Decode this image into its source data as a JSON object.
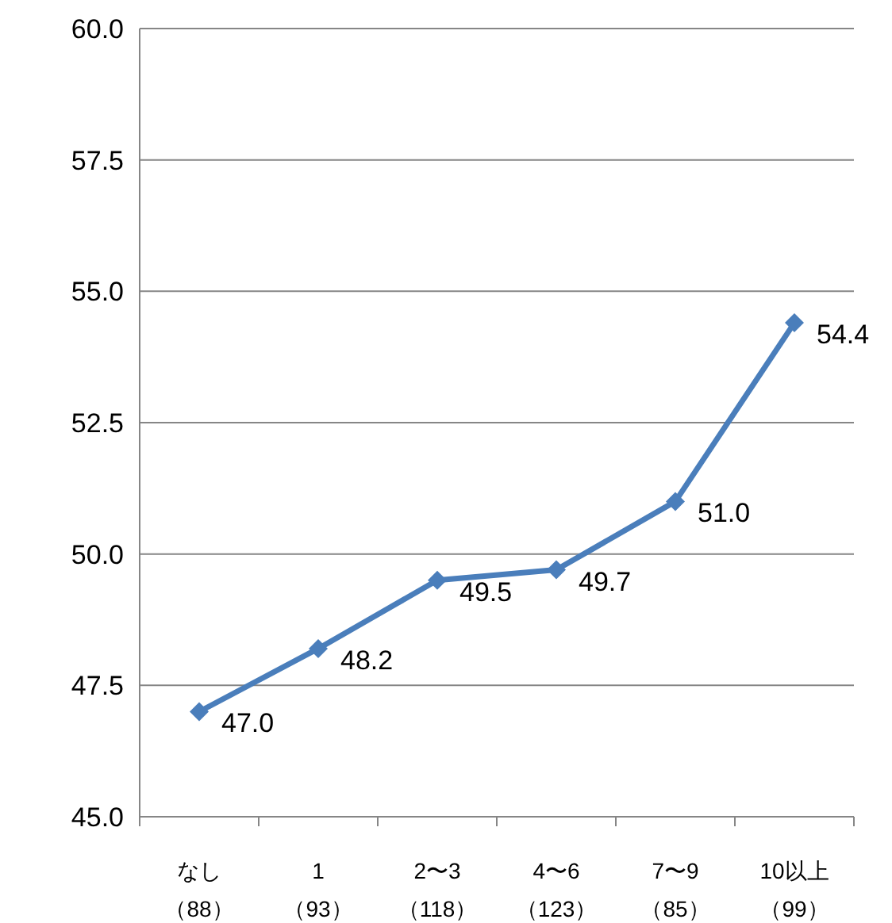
{
  "chart_data": {
    "type": "line",
    "categories": [
      "なし（88）",
      "1（93）",
      "2〜3（118）",
      "4〜6（123）",
      "7〜9（85）",
      "10以上（99）"
    ],
    "series": [
      {
        "color": "#4a7ebb",
        "values": [
          47.0,
          48.2,
          49.5,
          49.7,
          51.0,
          54.4
        ],
        "value_labels": [
          "47.0",
          "48.2",
          "49.5",
          "49.7",
          "51.0",
          "54.4"
        ]
      }
    ],
    "ylim": [
      45,
      60
    ],
    "yticks": [
      {
        "value": 45,
        "label": "45.0"
      },
      {
        "value": 47.5,
        "label": "47.5"
      },
      {
        "value": 50,
        "label": "50.0"
      },
      {
        "value": 52.5,
        "label": "52.5"
      },
      {
        "value": 55,
        "label": "55.0"
      },
      {
        "value": 57.5,
        "label": "57.5"
      },
      {
        "value": 60,
        "label": "60.0"
      }
    ],
    "grid": "y",
    "marker": "diamond",
    "line_style": "solid"
  }
}
